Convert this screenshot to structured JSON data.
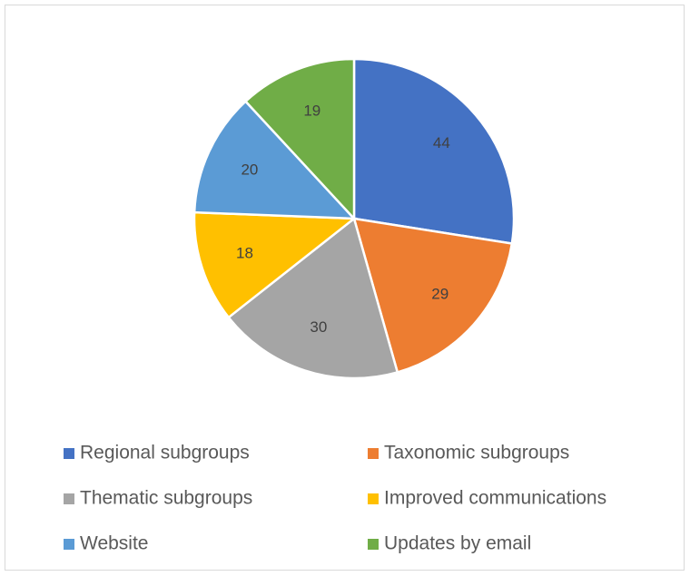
{
  "chart_data": {
    "type": "pie",
    "categories": [
      "Regional subgroups",
      "Taxonomic subgroups",
      "Thematic subgroups",
      "Improved communications",
      "Website",
      "Updates by email"
    ],
    "values": [
      44,
      29,
      30,
      18,
      20,
      19
    ],
    "colors": [
      "#4472c4",
      "#ed7d31",
      "#a5a5a5",
      "#ffc000",
      "#5b9bd5",
      "#70ad47"
    ],
    "legend": "bottom"
  }
}
